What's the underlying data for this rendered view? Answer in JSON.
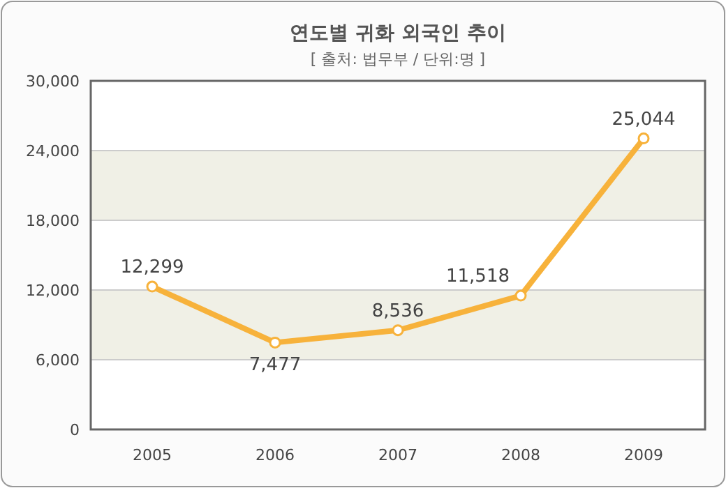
{
  "chart_data": {
    "type": "line",
    "title": "연도별 귀화 외국인 추이",
    "subtitle": "[ 출처: 법무부 / 단위:명 ]",
    "categories": [
      "2005",
      "2006",
      "2007",
      "2008",
      "2009"
    ],
    "series": [
      {
        "color": "#f7b23b",
        "values": [
          12299,
          7477,
          8536,
          11518,
          25044
        ],
        "value_labels": [
          "12,299",
          "7,477",
          "8,536",
          "11,518",
          "25,044"
        ]
      }
    ],
    "ylim": [
      0,
      30000
    ],
    "yticks": [
      {
        "value": 0,
        "label": "0"
      },
      {
        "value": 6000,
        "label": "6,000"
      },
      {
        "value": 12000,
        "label": "12,000"
      },
      {
        "value": 18000,
        "label": "18,000"
      },
      {
        "value": 24000,
        "label": "24,000"
      },
      {
        "value": 30000,
        "label": "30,000"
      }
    ],
    "bands": [
      {
        "axis": "y",
        "from": 6000,
        "to": 12000,
        "color": "#f0f0e6"
      },
      {
        "axis": "y",
        "from": 18000,
        "to": 24000,
        "color": "#f0f0e6"
      }
    ],
    "grid": "y",
    "marker": "circle",
    "line_style": "solid"
  }
}
